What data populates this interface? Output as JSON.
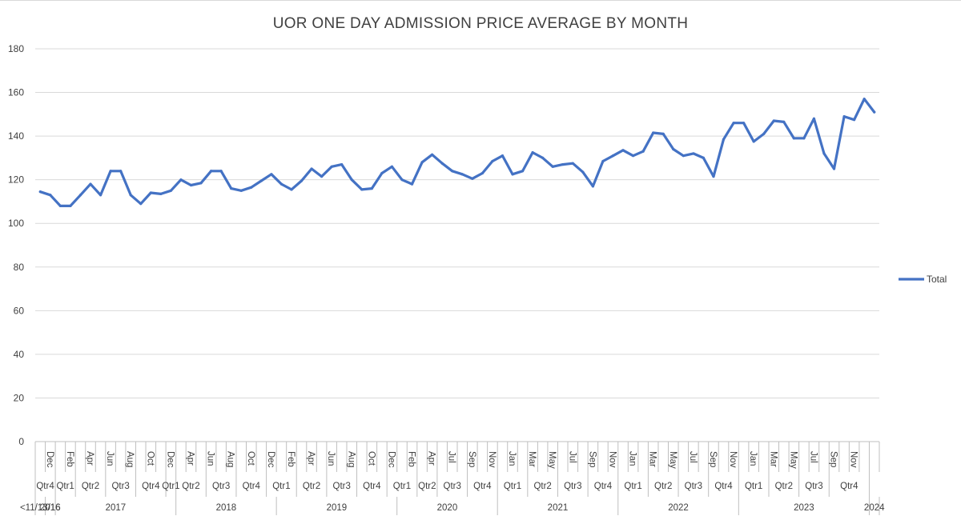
{
  "chart_data": {
    "type": "line",
    "title": "UOR ONE DAY ADMISSION PRICE AVERAGE BY MONTH",
    "xlabel": "",
    "ylabel": "",
    "ylim": [
      0,
      180
    ],
    "yticks": [
      0,
      20,
      40,
      60,
      80,
      100,
      120,
      140,
      160,
      180
    ],
    "grid": true,
    "legend_position": "right",
    "series": [
      {
        "name": "Total",
        "color": "#4472C4",
        "values": [
          114.5,
          113,
          108,
          108,
          113,
          118,
          113,
          124,
          124,
          113,
          109,
          114,
          113.5,
          115,
          120,
          117.5,
          118.5,
          124,
          124,
          116,
          115,
          116.5,
          119.5,
          122.5,
          118,
          115.5,
          119.5,
          125,
          121.5,
          126,
          127,
          120,
          115.5,
          116,
          123,
          126,
          120,
          118,
          128,
          131.5,
          127.5,
          124,
          122.5,
          120.5,
          123,
          128.5,
          131,
          122.5,
          124,
          132.5,
          130,
          126,
          127,
          127.5,
          123.5,
          117,
          128.5,
          131,
          133.5,
          131,
          133,
          141.5,
          141,
          134,
          131,
          132,
          130,
          121.5,
          138.5,
          146,
          146,
          137.5,
          141,
          147,
          146.5,
          139,
          139,
          148,
          132,
          125,
          149,
          147.5,
          157,
          151
        ]
      }
    ],
    "x_axis": {
      "months": [
        "",
        "Dec",
        "",
        "Feb",
        "",
        "Apr",
        "",
        "Jun",
        "",
        "Aug",
        "",
        "Oct",
        "",
        "Dec",
        "",
        "Apr",
        "",
        "Jun",
        "",
        "Aug",
        "",
        "Oct",
        "",
        "Dec",
        "",
        "Feb",
        "",
        "Apr",
        "",
        "Jun",
        "",
        "Aug",
        "",
        "Oct",
        "",
        "Dec",
        "",
        "Feb",
        "",
        "Apr",
        "",
        "Jul",
        "",
        "Sep",
        "",
        "Nov",
        "",
        "Jan",
        "",
        "Mar",
        "",
        "May",
        "",
        "Jul",
        "",
        "Sep",
        "",
        "Nov",
        "",
        "Jan",
        "",
        "Mar",
        "",
        "May",
        "",
        "Jul",
        "",
        "Sep",
        "",
        "Nov",
        "",
        "Jan",
        "",
        "Mar",
        "",
        "May",
        "",
        "Jul",
        "",
        "Sep",
        "",
        "Nov",
        "",
        ""
      ],
      "quarters": [
        {
          "label": "Qtr4",
          "start": 0,
          "end": 1
        },
        {
          "label": "Qtr1",
          "start": 2,
          "end": 3
        },
        {
          "label": "Qtr2",
          "start": 4,
          "end": 6
        },
        {
          "label": "Qtr3",
          "start": 7,
          "end": 9
        },
        {
          "label": "Qtr4",
          "start": 10,
          "end": 12
        },
        {
          "label": "Qtr1",
          "start": 13,
          "end": 13
        },
        {
          "label": "Qtr2",
          "start": 14,
          "end": 16
        },
        {
          "label": "Qtr3",
          "start": 17,
          "end": 19
        },
        {
          "label": "Qtr4",
          "start": 20,
          "end": 22
        },
        {
          "label": "Qtr1",
          "start": 23,
          "end": 25
        },
        {
          "label": "Qtr2",
          "start": 26,
          "end": 28
        },
        {
          "label": "Qtr3",
          "start": 29,
          "end": 31
        },
        {
          "label": "Qtr4",
          "start": 32,
          "end": 34
        },
        {
          "label": "Qtr1",
          "start": 35,
          "end": 37
        },
        {
          "label": "Qtr2",
          "start": 38,
          "end": 39
        },
        {
          "label": "Qtr3",
          "start": 40,
          "end": 42
        },
        {
          "label": "Qtr4",
          "start": 43,
          "end": 45
        },
        {
          "label": "Qtr1",
          "start": 46,
          "end": 48
        },
        {
          "label": "Qtr2",
          "start": 49,
          "end": 51
        },
        {
          "label": "Qtr3",
          "start": 52,
          "end": 54
        },
        {
          "label": "Qtr4",
          "start": 55,
          "end": 57
        },
        {
          "label": "Qtr1",
          "start": 58,
          "end": 60
        },
        {
          "label": "Qtr2",
          "start": 61,
          "end": 63
        },
        {
          "label": "Qtr3",
          "start": 64,
          "end": 66
        },
        {
          "label": "Qtr4",
          "start": 67,
          "end": 69
        },
        {
          "label": "Qtr1",
          "start": 70,
          "end": 72
        },
        {
          "label": "Qtr2",
          "start": 73,
          "end": 75
        },
        {
          "label": "Qtr3",
          "start": 76,
          "end": 78
        },
        {
          "label": "Qtr4",
          "start": 79,
          "end": 82
        }
      ],
      "years": [
        {
          "label": "<11/13/16",
          "start": 0,
          "end": 0
        },
        {
          "label": "2016",
          "start": 1,
          "end": 1
        },
        {
          "label": "2017",
          "start": 2,
          "end": 13
        },
        {
          "label": "2018",
          "start": 14,
          "end": 23
        },
        {
          "label": "2019",
          "start": 24,
          "end": 35
        },
        {
          "label": "2020",
          "start": 36,
          "end": 45
        },
        {
          "label": "2021",
          "start": 46,
          "end": 57
        },
        {
          "label": "2022",
          "start": 58,
          "end": 69
        },
        {
          "label": "2023",
          "start": 70,
          "end": 82
        },
        {
          "label": "2024",
          "start": 83,
          "end": 83
        }
      ]
    }
  }
}
